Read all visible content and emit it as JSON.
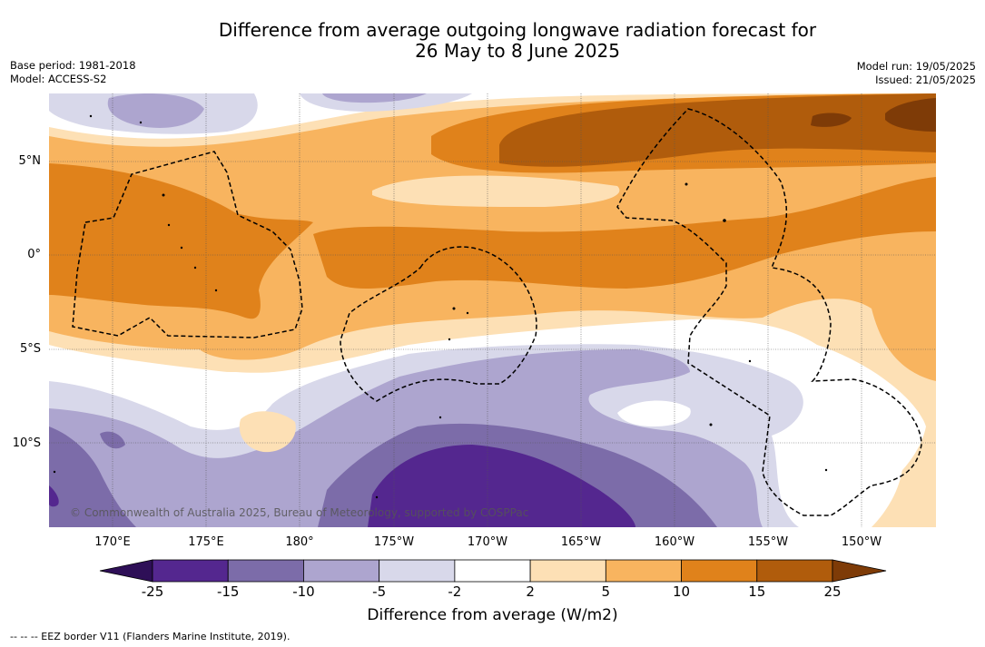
{
  "title_line1": "Difference from average outgoing longwave radiation forecast for",
  "title_line2": "26 May to 8 June 2025",
  "meta_left": {
    "base_period": "Base period: 1981-2018",
    "model": "Model: ACCESS-S2"
  },
  "meta_right": {
    "model_run": "Model run: 19/05/2025",
    "issued": "Issued: 21/05/2025"
  },
  "copyright": "© Commonwealth of Australia 2025, Bureau of Meteorology, supported by COSPPac",
  "lat_labels": [
    "5°N",
    "0°",
    "5°S",
    "10°S"
  ],
  "lon_labels": [
    "170°E",
    "175°E",
    "180°",
    "175°W",
    "170°W",
    "165°W",
    "160°W",
    "155°W",
    "150°W"
  ],
  "colorbar": {
    "ticks": [
      "-25",
      "-15",
      "-10",
      "-5",
      "-2",
      "2",
      "5",
      "10",
      "15",
      "25"
    ],
    "colors": [
      "#2e0f57",
      "#54278f",
      "#7c6ca9",
      "#ada5cf",
      "#d8d8ea",
      "#ffffff",
      "#fde0b5",
      "#f8b45f",
      "#e0821b",
      "#b05c0c",
      "#7e3b07"
    ],
    "title": "Difference from average (W/m2)"
  },
  "footnote": "-- -- -- EEZ border V11 (Flanders Marine Institute, 2019)."
}
